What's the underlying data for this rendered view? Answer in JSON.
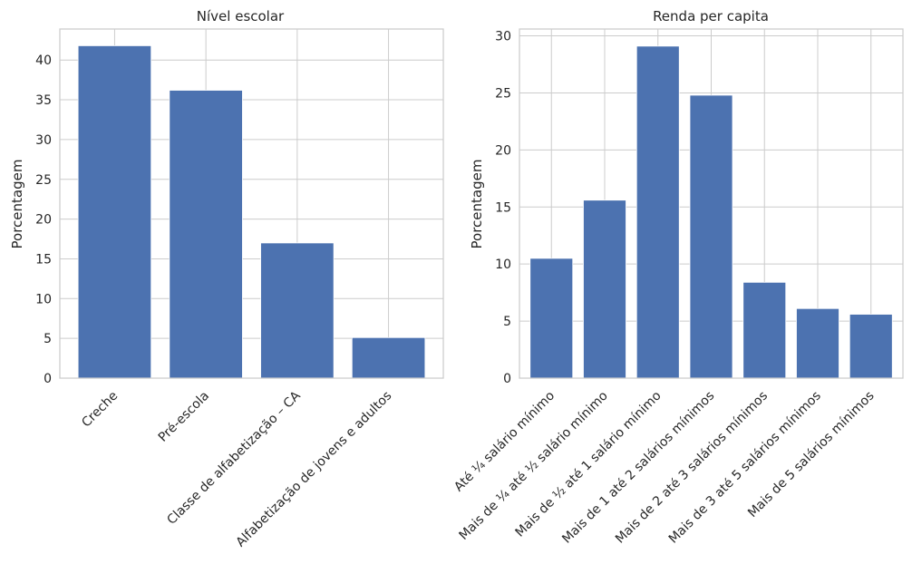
{
  "chart_data": [
    {
      "type": "bar",
      "title": "Nível escolar",
      "xlabel": "",
      "ylabel": "Porcentagem",
      "categories": [
        "Creche",
        "Pré-escola",
        "Classe de alfabetização – CA",
        "Alfabetização de jovens e adultos"
      ],
      "values": [
        41.8,
        36.2,
        17.0,
        5.1
      ],
      "ylim": [
        0,
        43.9
      ],
      "yticks": [
        0,
        5,
        10,
        15,
        20,
        25,
        30,
        35,
        40
      ],
      "grid": true,
      "legend": "none"
    },
    {
      "type": "bar",
      "title": "Renda per capita",
      "xlabel": "",
      "ylabel": "Porcentagem",
      "categories": [
        "Até ¼ salário mínimo",
        "Mais de ¼ até ½ salário mínimo",
        "Mais de ½ até 1 salário mínimo",
        "Mais de 1 até 2 salários mínimos",
        "Mais de 2 até 3 salários mínimos",
        "Mais de 3 até 5 salários mínimos",
        "Mais de 5 salários mínimos"
      ],
      "values": [
        10.5,
        15.6,
        29.1,
        24.8,
        8.4,
        6.1,
        5.6
      ],
      "ylim": [
        0,
        30.6
      ],
      "yticks": [
        0,
        5,
        10,
        15,
        20,
        25,
        30
      ],
      "grid": true,
      "legend": "none"
    }
  ],
  "colors": {
    "bar": "#4c72b0",
    "grid": "#cccccc",
    "axes_edge": "#cccccc",
    "text": "#262626"
  }
}
